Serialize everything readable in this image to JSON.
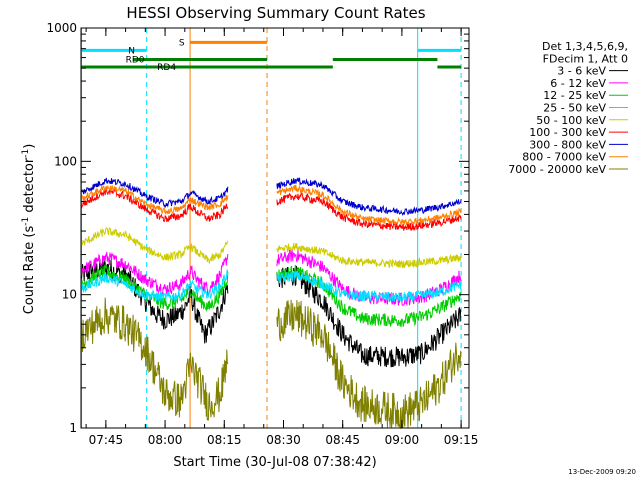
{
  "chart_data": {
    "type": "line",
    "title": "HESSI Observing Summary Count Rates",
    "xlabel": "Start Time (30-Jul-08 07:38:42)",
    "ylabel_main": "Count Rate (s",
    "ylabel_sup1": "-1",
    "ylabel_mid": " detector",
    "ylabel_sup2": "-1",
    "ylabel_end": ")",
    "yscale": "log",
    "xlim": [
      "07:38:42",
      "09:17:00"
    ],
    "ylim": [
      1,
      1000
    ],
    "x_ticks": [
      "07:45",
      "08:00",
      "08:15",
      "08:30",
      "08:45",
      "09:00",
      "09:15"
    ],
    "y_ticks": [
      "1",
      "10",
      "100",
      "1000"
    ],
    "footer": "13-Dec-2009 09:20",
    "legend": {
      "header": [
        "Det 1,3,4,5,6,9,",
        "FDecim 1, Att 0"
      ],
      "placement": "right"
    },
    "flags": [
      {
        "label": "N",
        "color": "#00e0ff",
        "level": 680,
        "segments": [
          [
            "07:38:42",
            "07:55:20"
          ],
          [
            "09:04:00",
            "09:15:00"
          ]
        ]
      },
      {
        "label": "S",
        "color": "#ff8000",
        "level": 780,
        "segments": [
          [
            "08:06:20",
            "08:25:50"
          ]
        ]
      },
      {
        "label": "RD0",
        "color": "#008000",
        "level": 580,
        "segments": [
          [
            "07:52:00",
            "08:25:50"
          ],
          [
            "08:42:30",
            "09:09:00"
          ]
        ]
      },
      {
        "label": "RD4",
        "color": "#008000",
        "level": 510,
        "segments": [
          [
            "07:38:42",
            "08:25:50"
          ],
          [
            "08:25:50",
            "08:42:30"
          ],
          [
            "09:09:00",
            "09:15:00"
          ]
        ]
      }
    ],
    "vlines": [
      {
        "time": "07:38:50",
        "color": "#00e0ff",
        "style": "solid"
      },
      {
        "time": "07:55:20",
        "color": "#00e0ff",
        "style": "dash"
      },
      {
        "time": "08:06:20",
        "color": "#ff8000",
        "style": "solid"
      },
      {
        "time": "08:25:50",
        "color": "#ff8000",
        "style": "dash"
      },
      {
        "time": "09:04:00",
        "color": "#00e0ff",
        "style": "solid"
      },
      {
        "time": "09:15:00",
        "color": "#00e0ff",
        "style": "dash"
      }
    ],
    "segments": [
      [
        "07:38:42",
        "08:16:00"
      ],
      [
        "08:28:20",
        "09:15:00"
      ]
    ],
    "series": [
      {
        "name": "3 - 6 keV",
        "color": "#000000",
        "noise": 0.08,
        "points": [
          [
            "07:38:42",
            14
          ],
          [
            "07:45:00",
            16
          ],
          [
            "07:50:00",
            14
          ],
          [
            "07:55:00",
            9
          ],
          [
            "07:58:00",
            7
          ],
          [
            "08:00:00",
            6.5
          ],
          [
            "08:03:00",
            7
          ],
          [
            "08:05:00",
            8
          ],
          [
            "08:06:30",
            10
          ],
          [
            "08:08:00",
            7
          ],
          [
            "08:10:00",
            5
          ],
          [
            "08:12:00",
            6
          ],
          [
            "08:14:00",
            8
          ],
          [
            "08:16:00",
            12
          ],
          [
            "08:28:20",
            13
          ],
          [
            "08:33:00",
            14
          ],
          [
            "08:40:00",
            9
          ],
          [
            "08:45:00",
            5
          ],
          [
            "08:50:00",
            3.5
          ],
          [
            "09:00:00",
            3.4
          ],
          [
            "09:05:00",
            3.6
          ],
          [
            "09:10:00",
            5
          ],
          [
            "09:15:00",
            7
          ]
        ]
      },
      {
        "name": "6 - 12 keV",
        "color": "#ff00ff",
        "noise": 0.05,
        "points": [
          [
            "07:38:42",
            15
          ],
          [
            "07:45:00",
            19
          ],
          [
            "07:50:00",
            17
          ],
          [
            "07:55:00",
            13
          ],
          [
            "08:00:00",
            11
          ],
          [
            "08:04:00",
            12
          ],
          [
            "08:06:30",
            15
          ],
          [
            "08:08:00",
            13
          ],
          [
            "08:11:00",
            11
          ],
          [
            "08:14:00",
            14
          ],
          [
            "08:16:00",
            20
          ],
          [
            "08:28:20",
            18
          ],
          [
            "08:33:00",
            20
          ],
          [
            "08:40:00",
            16
          ],
          [
            "08:45:00",
            11
          ],
          [
            "08:50:00",
            9.5
          ],
          [
            "09:00:00",
            9.2
          ],
          [
            "09:05:00",
            9.6
          ],
          [
            "09:10:00",
            11
          ],
          [
            "09:15:00",
            14
          ]
        ]
      },
      {
        "name": "12 - 25 keV",
        "color": "#00cc00",
        "noise": 0.05,
        "points": [
          [
            "07:38:42",
            12
          ],
          [
            "07:45:00",
            15
          ],
          [
            "07:50:00",
            13
          ],
          [
            "07:55:00",
            10
          ],
          [
            "08:00:00",
            8.5
          ],
          [
            "08:04:00",
            9
          ],
          [
            "08:06:30",
            11
          ],
          [
            "08:08:00",
            9.5
          ],
          [
            "08:11:00",
            8
          ],
          [
            "08:14:00",
            10
          ],
          [
            "08:16:00",
            14
          ],
          [
            "08:28:20",
            14
          ],
          [
            "08:33:00",
            15
          ],
          [
            "08:40:00",
            12
          ],
          [
            "08:45:00",
            8
          ],
          [
            "08:50:00",
            6.6
          ],
          [
            "09:00:00",
            6.4
          ],
          [
            "09:05:00",
            6.8
          ],
          [
            "09:10:00",
            8
          ],
          [
            "09:15:00",
            10
          ]
        ]
      },
      {
        "name": "25 - 50 keV",
        "color": "#00e0ff",
        "noise": 0.04,
        "points": [
          [
            "07:38:42",
            11
          ],
          [
            "07:45:00",
            13.5
          ],
          [
            "07:50:00",
            12
          ],
          [
            "07:55:00",
            10
          ],
          [
            "08:00:00",
            9.5
          ],
          [
            "08:04:00",
            10
          ],
          [
            "08:06:30",
            12
          ],
          [
            "08:08:00",
            11
          ],
          [
            "08:11:00",
            10
          ],
          [
            "08:14:00",
            11.5
          ],
          [
            "08:16:00",
            15
          ],
          [
            "08:28:20",
            13
          ],
          [
            "08:33:00",
            14
          ],
          [
            "08:40:00",
            12
          ],
          [
            "08:45:00",
            10
          ],
          [
            "08:50:00",
            9.8
          ],
          [
            "09:00:00",
            9.5
          ],
          [
            "09:05:00",
            9.8
          ],
          [
            "09:10:00",
            10.5
          ],
          [
            "09:15:00",
            12
          ]
        ]
      },
      {
        "name": "50 - 100 keV",
        "color": "#cccc00",
        "noise": 0.03,
        "points": [
          [
            "07:38:42",
            24
          ],
          [
            "07:45:00",
            30
          ],
          [
            "07:50:00",
            28
          ],
          [
            "07:55:00",
            22
          ],
          [
            "08:00:00",
            19
          ],
          [
            "08:04:00",
            20
          ],
          [
            "08:06:30",
            23
          ],
          [
            "08:08:00",
            21
          ],
          [
            "08:11:00",
            18
          ],
          [
            "08:14:00",
            20
          ],
          [
            "08:16:00",
            25
          ],
          [
            "08:28:20",
            22
          ],
          [
            "08:33:00",
            23
          ],
          [
            "08:40:00",
            21
          ],
          [
            "08:45:00",
            18
          ],
          [
            "08:50:00",
            17.5
          ],
          [
            "09:00:00",
            17
          ],
          [
            "09:05:00",
            17.5
          ],
          [
            "09:10:00",
            18
          ],
          [
            "09:15:00",
            19
          ]
        ]
      },
      {
        "name": "100 - 300 keV",
        "color": "#ff0000",
        "noise": 0.03,
        "points": [
          [
            "07:38:42",
            47
          ],
          [
            "07:45:00",
            60
          ],
          [
            "07:50:00",
            55
          ],
          [
            "07:55:00",
            44
          ],
          [
            "08:00:00",
            37
          ],
          [
            "08:04:00",
            39
          ],
          [
            "08:06:30",
            46
          ],
          [
            "08:08:00",
            42
          ],
          [
            "08:11:00",
            37
          ],
          [
            "08:14:00",
            40
          ],
          [
            "08:16:00",
            48
          ],
          [
            "08:28:20",
            50
          ],
          [
            "08:33:00",
            55
          ],
          [
            "08:40:00",
            50
          ],
          [
            "08:45:00",
            38
          ],
          [
            "08:50:00",
            34
          ],
          [
            "09:00:00",
            32
          ],
          [
            "09:05:00",
            33
          ],
          [
            "09:10:00",
            35
          ],
          [
            "09:15:00",
            38
          ]
        ]
      },
      {
        "name": "300 - 800 keV",
        "color": "#0000cc",
        "noise": 0.025,
        "points": [
          [
            "07:38:42",
            58
          ],
          [
            "07:45:00",
            72
          ],
          [
            "07:50:00",
            68
          ],
          [
            "07:55:00",
            55
          ],
          [
            "08:00:00",
            48
          ],
          [
            "08:04:00",
            50
          ],
          [
            "08:06:30",
            58
          ],
          [
            "08:08:00",
            55
          ],
          [
            "08:11:00",
            50
          ],
          [
            "08:14:00",
            53
          ],
          [
            "08:16:00",
            62
          ],
          [
            "08:28:20",
            65
          ],
          [
            "08:33:00",
            72
          ],
          [
            "08:40:00",
            66
          ],
          [
            "08:45:00",
            50
          ],
          [
            "08:50:00",
            45
          ],
          [
            "09:00:00",
            42
          ],
          [
            "09:05:00",
            43
          ],
          [
            "09:10:00",
            46
          ],
          [
            "09:15:00",
            50
          ]
        ]
      },
      {
        "name": "800 - 7000 keV",
        "color": "#ff8000",
        "noise": 0.025,
        "points": [
          [
            "07:38:42",
            52
          ],
          [
            "07:45:00",
            64
          ],
          [
            "07:50:00",
            60
          ],
          [
            "07:55:00",
            48
          ],
          [
            "08:00:00",
            42
          ],
          [
            "08:04:00",
            44
          ],
          [
            "08:06:30",
            52
          ],
          [
            "08:08:00",
            49
          ],
          [
            "08:11:00",
            45
          ],
          [
            "08:14:00",
            48
          ],
          [
            "08:16:00",
            55
          ],
          [
            "08:28:20",
            58
          ],
          [
            "08:33:00",
            63
          ],
          [
            "08:40:00",
            56
          ],
          [
            "08:45:00",
            42
          ],
          [
            "08:50:00",
            37
          ],
          [
            "09:00:00",
            35
          ],
          [
            "09:05:00",
            36
          ],
          [
            "09:10:00",
            38
          ],
          [
            "09:15:00",
            42
          ]
        ]
      },
      {
        "name": "7000 - 20000 keV",
        "color": "#808000",
        "noise": 0.14,
        "points": [
          [
            "07:38:42",
            5
          ],
          [
            "07:45:00",
            7
          ],
          [
            "07:50:00",
            6
          ],
          [
            "07:55:00",
            4
          ],
          [
            "07:58:00",
            2.5
          ],
          [
            "08:00:00",
            1.8
          ],
          [
            "08:04:00",
            1.6
          ],
          [
            "08:06:30",
            3
          ],
          [
            "08:08:00",
            2.4
          ],
          [
            "08:11:00",
            1.5
          ],
          [
            "08:14:00",
            1.8
          ],
          [
            "08:16:00",
            3.5
          ],
          [
            "08:28:20",
            6
          ],
          [
            "08:33:00",
            7
          ],
          [
            "08:40:00",
            5
          ],
          [
            "08:45:00",
            2.2
          ],
          [
            "08:50:00",
            1.5
          ],
          [
            "09:00:00",
            1.3
          ],
          [
            "09:05:00",
            1.5
          ],
          [
            "09:10:00",
            2.2
          ],
          [
            "09:15:00",
            4
          ]
        ]
      }
    ]
  }
}
